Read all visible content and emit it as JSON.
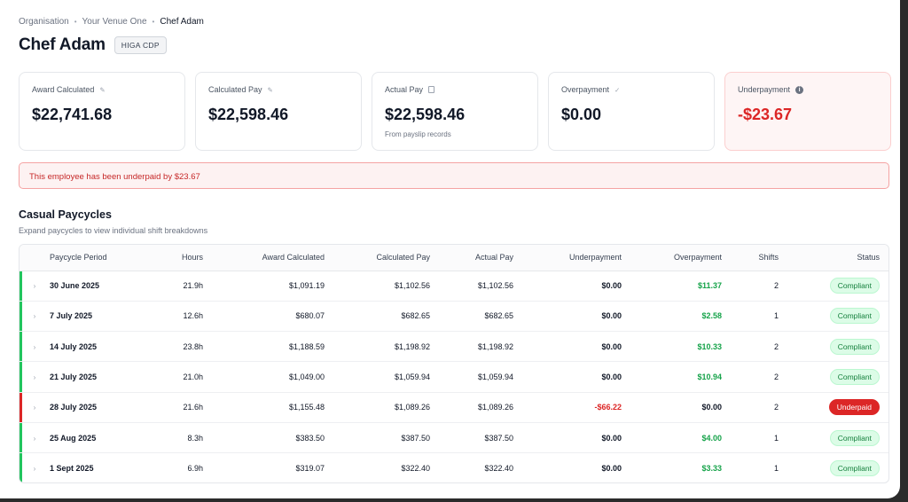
{
  "breadcrumb": [
    "Organisation",
    "Your Venue One",
    "Chef Adam"
  ],
  "employee": {
    "name": "Chef Adam",
    "role": "HIGA CDP"
  },
  "cards": [
    {
      "label": "Award Calculated",
      "icon": "pencil-icon",
      "value": "$22,741.68",
      "sub": ""
    },
    {
      "label": "Calculated Pay",
      "icon": "pencil-icon",
      "value": "$22,598.46",
      "sub": ""
    },
    {
      "label": "Actual Pay",
      "icon": "document-icon",
      "value": "$22,598.46",
      "sub": "From payslip records"
    },
    {
      "label": "Overpayment",
      "icon": "check-icon",
      "value": "$0.00",
      "sub": ""
    },
    {
      "label": "Underpayment",
      "icon": "info-icon",
      "value": "-$23.67",
      "sub": ""
    }
  ],
  "banner": "This employee has been underpaid by $23.67",
  "section": {
    "title": "Casual Paycycles",
    "subtitle": "Expand paycycles to view individual shift breakdowns"
  },
  "table": {
    "headers": [
      "Paycycle Period",
      "Hours",
      "Award Calculated",
      "Calculated Pay",
      "Actual Pay",
      "Underpayment",
      "Overpayment",
      "Shifts",
      "Status"
    ],
    "rows": [
      {
        "period": "30 June 2025",
        "hours": "21.9h",
        "award": "$1,091.19",
        "calc": "$1,102.56",
        "actual": "$1,102.56",
        "under": "$0.00",
        "over": "$11.37",
        "shifts": "2",
        "status": "Compliant"
      },
      {
        "period": "7 July 2025",
        "hours": "12.6h",
        "award": "$680.07",
        "calc": "$682.65",
        "actual": "$682.65",
        "under": "$0.00",
        "over": "$2.58",
        "shifts": "1",
        "status": "Compliant"
      },
      {
        "period": "14 July 2025",
        "hours": "23.8h",
        "award": "$1,188.59",
        "calc": "$1,198.92",
        "actual": "$1,198.92",
        "under": "$0.00",
        "over": "$10.33",
        "shifts": "2",
        "status": "Compliant"
      },
      {
        "period": "21 July 2025",
        "hours": "21.0h",
        "award": "$1,049.00",
        "calc": "$1,059.94",
        "actual": "$1,059.94",
        "under": "$0.00",
        "over": "$10.94",
        "shifts": "2",
        "status": "Compliant"
      },
      {
        "period": "28 July 2025",
        "hours": "21.6h",
        "award": "$1,155.48",
        "calc": "$1,089.26",
        "actual": "$1,089.26",
        "under": "-$66.22",
        "over": "$0.00",
        "shifts": "2",
        "status": "Underpaid"
      },
      {
        "period": "25 Aug 2025",
        "hours": "8.3h",
        "award": "$383.50",
        "calc": "$387.50",
        "actual": "$387.50",
        "under": "$0.00",
        "over": "$4.00",
        "shifts": "1",
        "status": "Compliant"
      },
      {
        "period": "1 Sept 2025",
        "hours": "6.9h",
        "award": "$319.07",
        "calc": "$322.40",
        "actual": "$322.40",
        "under": "$0.00",
        "over": "$3.33",
        "shifts": "1",
        "status": "Compliant"
      }
    ]
  },
  "colors": {
    "compliant": "#22c55e",
    "underpaid": "#dc2626",
    "accent_text": "#16a34a"
  }
}
